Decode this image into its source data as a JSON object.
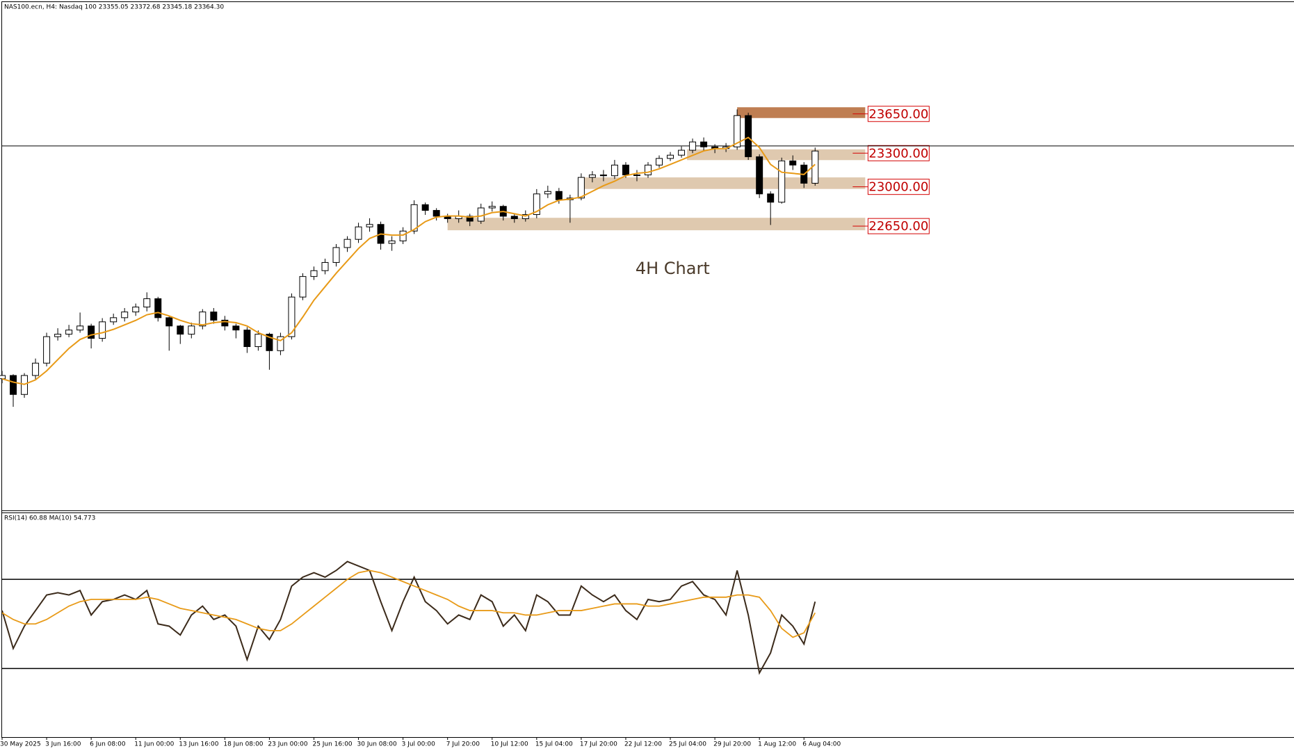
{
  "chart_data": [
    {
      "type": "candlestick",
      "title": "NAS100.ecn, H4:  Nasdaq 100  23355.05 23372.68 23345.18 23364.30",
      "annotation": "4H Chart",
      "xlim": [
        0,
        464
      ],
      "ylim": [
        20120,
        24650
      ],
      "x": [
        0,
        4,
        8,
        12,
        16,
        20,
        24,
        28,
        32,
        36,
        40,
        44,
        48,
        52,
        56,
        60,
        64,
        68,
        72,
        76,
        80,
        84,
        88,
        92,
        96,
        100,
        104,
        108,
        112,
        116,
        120,
        124,
        128,
        132,
        136,
        140,
        144,
        148,
        152,
        156,
        160,
        164,
        168,
        172,
        176,
        180,
        184,
        188,
        192,
        196,
        200,
        204,
        208,
        212,
        216,
        220,
        224,
        228,
        232,
        236,
        240,
        244,
        248,
        252,
        256,
        260,
        264,
        268,
        272,
        276,
        280,
        284,
        288,
        292
      ],
      "open": [
        21290,
        21319,
        21150,
        21319,
        21429,
        21665,
        21687,
        21724,
        21760,
        21650,
        21797,
        21834,
        21885,
        21929,
        22003,
        21834,
        21760,
        21687,
        21760,
        21885,
        21812,
        21760,
        21724,
        21576,
        21687,
        21540,
        21665,
        22018,
        22201,
        22253,
        22326,
        22459,
        22532,
        22643,
        22665,
        22496,
        22518,
        22606,
        22841,
        22790,
        22738,
        22716,
        22738,
        22694,
        22812,
        22826,
        22738,
        22716,
        22753,
        22937,
        22959,
        22885,
        22900,
        23084,
        23106,
        23099,
        23194,
        23106,
        23106,
        23194,
        23253,
        23282,
        23326,
        23400,
        23356,
        23341,
        23356,
        23635,
        23268,
        22937,
        22863,
        23231,
        23194,
        23032
      ],
      "high": [
        21360,
        21330,
        21340,
        21470,
        21700,
        21740,
        21770,
        21880,
        21780,
        21830,
        21870,
        21920,
        21960,
        22060,
        22020,
        21850,
        21770,
        21790,
        21910,
        21920,
        21850,
        21780,
        21750,
        21720,
        21700,
        21700,
        22050,
        22230,
        22290,
        22360,
        22490,
        22560,
        22680,
        22720,
        22690,
        22560,
        22640,
        22880,
        22860,
        22810,
        22760,
        22790,
        22760,
        22850,
        22870,
        22840,
        22760,
        22790,
        22980,
        23010,
        22990,
        22930,
        23120,
        23140,
        23150,
        23240,
        23220,
        23150,
        23220,
        23280,
        23310,
        23360,
        23430,
        23440,
        23380,
        23390,
        23690,
        23660,
        23290,
        22960,
        23260,
        23280,
        23220,
        23350
      ],
      "low": [
        21250,
        21040,
        21120,
        21280,
        21400,
        21630,
        21660,
        21700,
        21560,
        21620,
        21770,
        21800,
        21850,
        21890,
        21800,
        21540,
        21600,
        21650,
        21730,
        21780,
        21720,
        21650,
        21520,
        21540,
        21370,
        21500,
        21640,
        21990,
        22170,
        22220,
        22290,
        22420,
        22500,
        22600,
        22440,
        22430,
        22490,
        22580,
        22750,
        22700,
        22680,
        22680,
        22650,
        22670,
        22780,
        22700,
        22680,
        22690,
        22720,
        22900,
        22850,
        22680,
        22880,
        23040,
        23050,
        23070,
        23080,
        23050,
        23080,
        23170,
        23230,
        23260,
        23300,
        23320,
        23300,
        23310,
        23330,
        23240,
        22900,
        22660,
        22850,
        23150,
        22990,
        23010
      ],
      "close": [
        21319,
        21150,
        21319,
        21429,
        21665,
        21687,
        21724,
        21760,
        21650,
        21797,
        21834,
        21885,
        21929,
        22003,
        21834,
        21760,
        21687,
        21760,
        21885,
        21812,
        21760,
        21724,
        21576,
        21687,
        21540,
        21665,
        22018,
        22201,
        22253,
        22326,
        22459,
        22532,
        22643,
        22665,
        22496,
        22518,
        22606,
        22841,
        22790,
        22738,
        22716,
        22738,
        22694,
        22812,
        22826,
        22738,
        22716,
        22753,
        22937,
        22959,
        22885,
        22900,
        23084,
        23106,
        23099,
        23194,
        23106,
        23106,
        23194,
        23253,
        23282,
        23326,
        23400,
        23356,
        23341,
        23356,
        23635,
        23268,
        22937,
        22863,
        23231,
        23194,
        23032,
        23319
      ],
      "up_color": "#ffffff",
      "down_color": "#000000",
      "ma": {
        "color": "#e89a17",
        "values": [
          21290,
          21260,
          21240,
          21280,
          21360,
          21460,
          21560,
          21640,
          21680,
          21700,
          21730,
          21770,
          21810,
          21860,
          21880,
          21850,
          21810,
          21780,
          21770,
          21790,
          21800,
          21790,
          21760,
          21700,
          21660,
          21630,
          21700,
          21840,
          21990,
          22110,
          22230,
          22340,
          22450,
          22540,
          22580,
          22570,
          22570,
          22620,
          22690,
          22730,
          22740,
          22740,
          22730,
          22740,
          22770,
          22780,
          22760,
          22740,
          22780,
          22840,
          22880,
          22890,
          22910,
          22960,
          23010,
          23050,
          23100,
          23120,
          23130,
          23160,
          23200,
          23240,
          23280,
          23320,
          23340,
          23340,
          23390,
          23440,
          23350,
          23200,
          23130,
          23120,
          23110,
          23200
        ]
      },
      "current_price": 23364.3,
      "zones": [
        {
          "price": {
            "value": 23650,
            "label": "23650.00"
          },
          "range": [
            23613,
            23709
          ],
          "start": 264,
          "end": 310,
          "color": "#b8703f"
        },
        {
          "price": {
            "value": 23300,
            "label": "23300.00"
          },
          "range": [
            23238,
            23334
          ],
          "start": 246,
          "end": 310,
          "color": "#dcc3a6"
        },
        {
          "price": {
            "value": 23000,
            "label": "23000.00"
          },
          "range": [
            22981,
            23084
          ],
          "start": 207,
          "end": 310,
          "color": "#dcc3a6"
        },
        {
          "price": {
            "value": 22650,
            "label": "22650.00"
          },
          "range": [
            22613,
            22724
          ],
          "start": 160,
          "end": 310,
          "color": "#dcc3a6"
        }
      ]
    },
    {
      "type": "line",
      "title": "RSI(14) 60.88 MA(10) 54.773",
      "xlim": [
        0,
        464
      ],
      "ylim": [
        0,
        100
      ],
      "levels": [
        30,
        70
      ],
      "xticks": [
        {
          "value": 0,
          "label": "30 May 2025"
        },
        {
          "value": 16,
          "label": "3 Jun 16:00"
        },
        {
          "value": 32,
          "label": "6 Jun 08:00"
        },
        {
          "value": 48,
          "label": "11 Jun 00:00"
        },
        {
          "value": 64,
          "label": "13 Jun 16:00"
        },
        {
          "value": 80,
          "label": "18 Jun 08:00"
        },
        {
          "value": 96,
          "label": "23 Jun 00:00"
        },
        {
          "value": 112,
          "label": "25 Jun 16:00"
        },
        {
          "value": 128,
          "label": "30 Jun 08:00"
        },
        {
          "value": 144,
          "label": "3 Jul 00:00"
        },
        {
          "value": 160,
          "label": "7 Jul 20:00"
        },
        {
          "value": 176,
          "label": "10 Jul 12:00"
        },
        {
          "value": 192,
          "label": "15 Jul 04:00"
        },
        {
          "value": 208,
          "label": "17 Jul 20:00"
        },
        {
          "value": 224,
          "label": "22 Jul 12:00"
        },
        {
          "value": 240,
          "label": "25 Jul 04:00"
        },
        {
          "value": 256,
          "label": "29 Jul 20:00"
        },
        {
          "value": 272,
          "label": "1 Aug 12:00"
        },
        {
          "value": 288,
          "label": "6 Aug 04:00"
        }
      ],
      "x": [
        0,
        4,
        8,
        12,
        16,
        20,
        24,
        28,
        32,
        36,
        40,
        44,
        48,
        52,
        56,
        60,
        64,
        68,
        72,
        76,
        80,
        84,
        88,
        92,
        96,
        100,
        104,
        108,
        112,
        116,
        120,
        124,
        128,
        132,
        136,
        140,
        144,
        148,
        152,
        156,
        160,
        164,
        168,
        172,
        176,
        180,
        184,
        188,
        192,
        196,
        200,
        204,
        208,
        212,
        216,
        220,
        224,
        228,
        232,
        236,
        240,
        244,
        248,
        252,
        256,
        260,
        264,
        268,
        272,
        276,
        280,
        284,
        288,
        292
      ],
      "series": [
        {
          "color": "#3b2a1a",
          "values": [
            56,
            39,
            49,
            56,
            63,
            64,
            63,
            65,
            54,
            60,
            61,
            63,
            61,
            65,
            50,
            49,
            45,
            54,
            58,
            52,
            54,
            49,
            34,
            49,
            43,
            52,
            67,
            71,
            73,
            71,
            74,
            78,
            76,
            74,
            60,
            47,
            60,
            71,
            60,
            56,
            50,
            54,
            52,
            63,
            60,
            49,
            54,
            47,
            63,
            60,
            54,
            54,
            67,
            63,
            60,
            63,
            56,
            52,
            61,
            60,
            61,
            67,
            69,
            63,
            61,
            54,
            74,
            54,
            28,
            37,
            54,
            49,
            41,
            60
          ]
        },
        {
          "color": "#e89a17",
          "values": [
            55,
            52,
            50,
            50,
            52,
            55,
            58,
            60,
            61,
            61,
            61,
            61,
            61,
            62,
            61,
            59,
            57,
            56,
            55,
            54,
            53,
            52,
            50,
            48,
            47,
            47,
            50,
            54,
            58,
            62,
            66,
            70,
            73,
            74,
            73,
            71,
            69,
            67,
            65,
            63,
            61,
            58,
            56,
            56,
            56,
            55,
            55,
            54,
            54,
            55,
            56,
            56,
            56,
            57,
            58,
            59,
            59,
            59,
            58,
            58,
            59,
            60,
            61,
            62,
            62,
            62,
            63,
            63,
            62,
            56,
            48,
            44,
            46,
            55
          ]
        }
      ]
    }
  ]
}
